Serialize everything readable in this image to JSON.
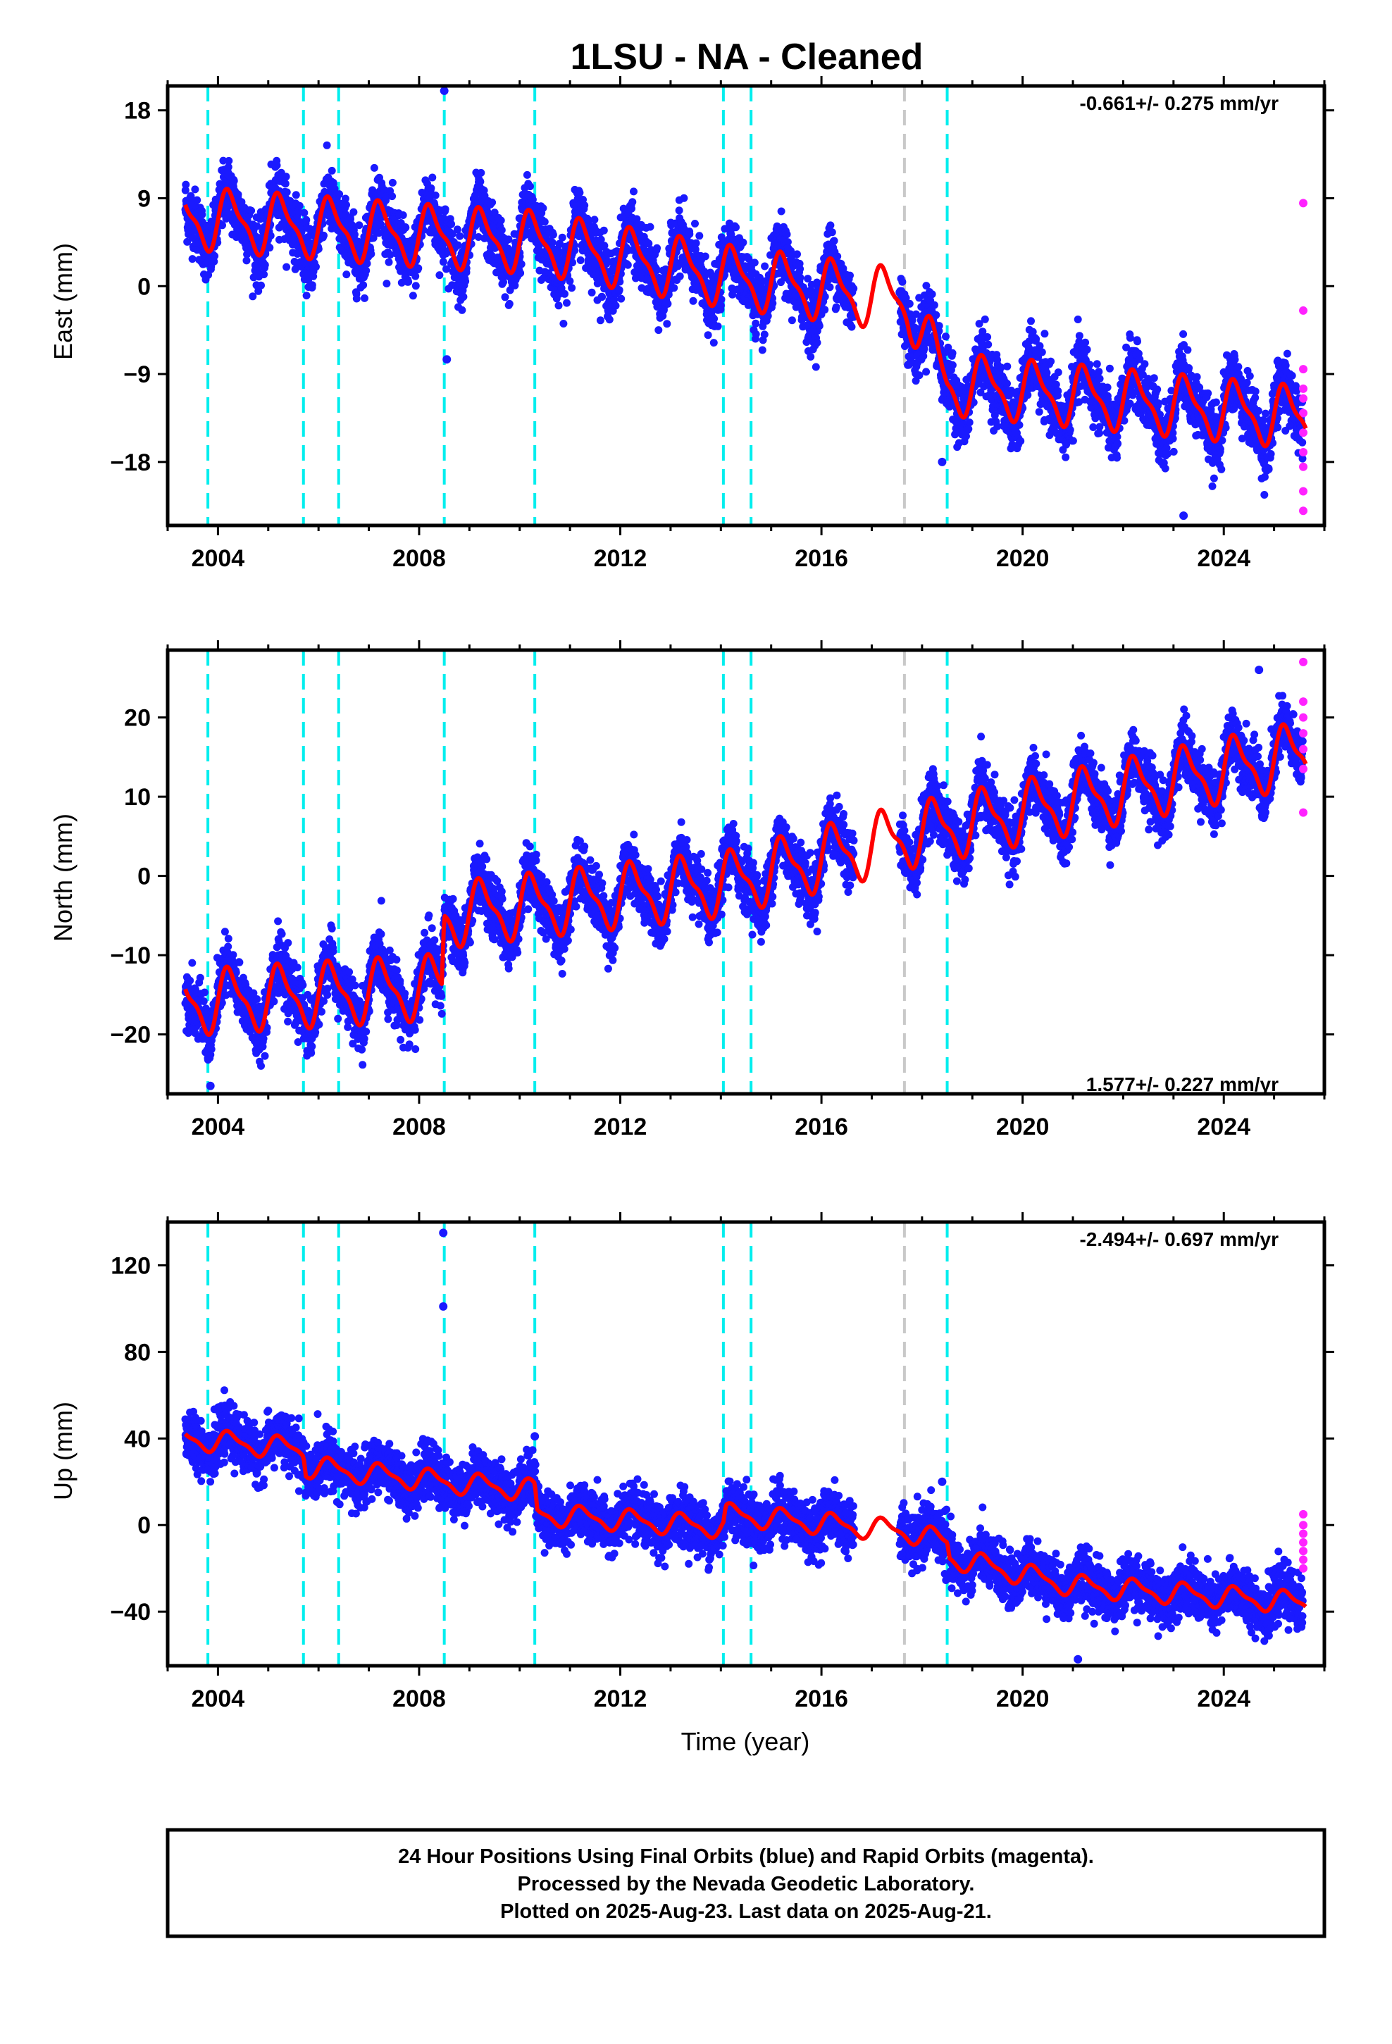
{
  "title": "1LSU  - NA - Cleaned",
  "xlabel": "Time (year)",
  "caption": [
    "24 Hour Positions Using Final Orbits (blue) and Rapid Orbits (magenta).",
    "Processed by the Nevada Geodetic Laboratory.",
    "Plotted on 2025-Aug-23. Last data on 2025-Aug-21."
  ],
  "colors": {
    "final_orbits": "#1a1aff",
    "rapid_orbits": "#ff22ff",
    "model_fit": "#ff0000",
    "equipment_change": "#00eeee",
    "other_event": "#c8c8c8"
  },
  "chart_data": [
    {
      "type": "scatter",
      "component": "East",
      "ylabel": "East (mm)",
      "rate_label": "-0.661+/- 0.275 mm/yr",
      "rate_position": "top-right",
      "xlim": [
        2003.0,
        2026.0
      ],
      "ylim": [
        -24.5,
        20.5
      ],
      "xticks": [
        2004,
        2008,
        2012,
        2016,
        2020,
        2024
      ],
      "yticks": [
        18,
        9,
        0,
        -9,
        -18
      ],
      "ytick_labels": [
        "18",
        "9",
        "0",
        "-9",
        "-18"
      ],
      "data_range": [
        2003.35,
        2025.63
      ],
      "data_gap": [
        2016.65,
        2017.55
      ],
      "rate_mm_per_yr": -0.661,
      "annual_amplitude_mm": 2.8,
      "noise_sd_mm": 1.6,
      "model_trend": [
        [
          2003.35,
          7.0
        ],
        [
          2008.5,
          5.0
        ],
        [
          2010.3,
          4.5
        ],
        [
          2014.1,
          1.0
        ],
        [
          2017.7,
          -1.5
        ],
        [
          2018.5,
          -10.0
        ],
        [
          2025.63,
          -13.5
        ]
      ],
      "model_offsets": [
        [
          2017.7,
          -7.0
        ]
      ],
      "outliers": [
        [
          2008.5,
          20.0
        ],
        [
          2008.55,
          -7.5
        ],
        [
          2018.4,
          -18.0
        ],
        [
          2023.2,
          -23.5
        ]
      ],
      "rapid_points": [
        [
          2025.58,
          8.5
        ],
        [
          2025.58,
          -2.5
        ],
        [
          2025.58,
          -8.5
        ],
        [
          2025.58,
          -10.5
        ],
        [
          2025.58,
          -11.5
        ],
        [
          2025.58,
          -13.0
        ],
        [
          2025.58,
          -15.0
        ],
        [
          2025.58,
          -17.0
        ],
        [
          2025.58,
          -18.5
        ],
        [
          2025.58,
          -21.0
        ],
        [
          2025.58,
          -23.0
        ]
      ],
      "events_equipment": [
        2003.8,
        2005.7,
        2006.4,
        2008.5,
        2010.3,
        2014.05,
        2014.6,
        2018.5
      ],
      "events_other": [
        2017.65
      ]
    },
    {
      "type": "scatter",
      "component": "North",
      "ylabel": "North (mm)",
      "rate_label": "1.577+/- 0.227 mm/yr",
      "rate_position": "bottom-right",
      "xlim": [
        2003.0,
        2026.0
      ],
      "ylim": [
        -27.5,
        28.5
      ],
      "xticks": [
        2004,
        2008,
        2012,
        2016,
        2020,
        2024
      ],
      "yticks": [
        20,
        10,
        0,
        -10,
        -20
      ],
      "ytick_labels": [
        "20",
        "10",
        "0",
        "-10",
        "-20"
      ],
      "data_range": [
        2003.35,
        2025.63
      ],
      "data_gap": [
        2016.65,
        2017.55
      ],
      "rate_mm_per_yr": 1.577,
      "annual_amplitude_mm": 3.6,
      "noise_sd_mm": 1.8,
      "model_trend": [
        [
          2003.35,
          -16.0
        ],
        [
          2008.45,
          -14.0
        ],
        [
          2008.5,
          -5.0
        ],
        [
          2014.1,
          -1.0
        ],
        [
          2017.7,
          5.0
        ],
        [
          2025.63,
          15.5
        ]
      ],
      "model_offsets": [],
      "outliers": [
        [
          2003.85,
          -26.5
        ],
        [
          2024.7,
          26.0
        ]
      ],
      "rapid_points": [
        [
          2025.58,
          27.0
        ],
        [
          2025.58,
          22.0
        ],
        [
          2025.58,
          20.0
        ],
        [
          2025.58,
          18.0
        ],
        [
          2025.58,
          16.0
        ],
        [
          2025.58,
          13.5
        ],
        [
          2025.58,
          8.0
        ]
      ],
      "events_equipment": [
        2003.8,
        2005.7,
        2006.4,
        2008.5,
        2010.3,
        2014.05,
        2014.6,
        2018.5
      ],
      "events_other": [
        2017.65
      ]
    },
    {
      "type": "scatter",
      "component": "Up",
      "ylabel": "Up (mm)",
      "rate_label": "-2.494+/- 0.697 mm/yr",
      "rate_position": "top-right",
      "xlim": [
        2003.0,
        2026.0
      ],
      "ylim": [
        -65.0,
        140.0
      ],
      "xticks": [
        2004,
        2008,
        2012,
        2016,
        2020,
        2024
      ],
      "yticks": [
        120,
        80,
        40,
        0,
        -40
      ],
      "ytick_labels": [
        "120",
        "80",
        "40",
        "0",
        "-40"
      ],
      "data_range": [
        2003.35,
        2025.63
      ],
      "data_gap": [
        2016.65,
        2017.55
      ],
      "rate_mm_per_yr": -2.494,
      "annual_amplitude_mm": 4.5,
      "noise_sd_mm": 6.0,
      "model_trend": [
        [
          2003.35,
          40.0
        ],
        [
          2005.7,
          35.0
        ],
        [
          2005.75,
          27.0
        ],
        [
          2008.5,
          20.0
        ],
        [
          2010.3,
          16.0
        ],
        [
          2010.35,
          5.0
        ],
        [
          2014.05,
          -1.0
        ],
        [
          2014.1,
          5.0
        ],
        [
          2017.7,
          -3.0
        ],
        [
          2018.5,
          -8.0
        ],
        [
          2018.55,
          -15.0
        ],
        [
          2021.0,
          -28.0
        ],
        [
          2025.63,
          -36.0
        ]
      ],
      "model_offsets": [],
      "outliers": [
        [
          2008.48,
          135.0
        ],
        [
          2008.48,
          101.0
        ],
        [
          2010.3,
          41.0
        ],
        [
          2018.4,
          20.0
        ],
        [
          2021.1,
          -62.0
        ]
      ],
      "rapid_points": [
        [
          2025.58,
          5.0
        ],
        [
          2025.58,
          0.0
        ],
        [
          2025.58,
          -4.0
        ],
        [
          2025.58,
          -8.0
        ],
        [
          2025.58,
          -12.0
        ],
        [
          2025.58,
          -16.0
        ],
        [
          2025.58,
          -20.0
        ]
      ],
      "events_equipment": [
        2003.8,
        2005.7,
        2006.4,
        2008.5,
        2010.3,
        2014.05,
        2014.6,
        2018.5
      ],
      "events_other": [
        2017.65
      ]
    }
  ]
}
